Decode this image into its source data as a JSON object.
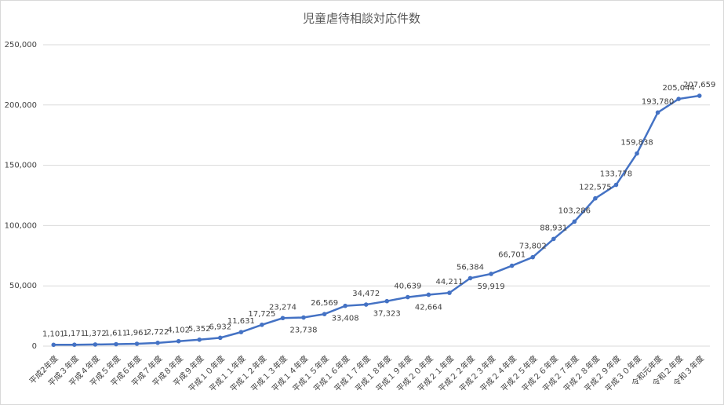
{
  "chart_data": {
    "type": "line",
    "title": "児童虐待相談対応件数",
    "categories": [
      "平成2年度",
      "平成３年度",
      "平成４年度",
      "平成５年度",
      "平成６年度",
      "平成７年度",
      "平成８年度",
      "平成９年度",
      "平成１０年度",
      "平成１１年度",
      "平成１２年度",
      "平成１３年度",
      "平成１４年度",
      "平成１５年度",
      "平成１６年度",
      "平成１７年度",
      "平成１８年度",
      "平成１９年度",
      "平成２０年度",
      "平成２１年度",
      "平成２２年度",
      "平成２３年度",
      "平成２４年度",
      "平成２５年度",
      "平成２６年度",
      "平成２７年度",
      "平成２８年度",
      "平成２９年度",
      "平成３０年度",
      "令和元年度",
      "令和２年度",
      "令和３年度"
    ],
    "series": [
      {
        "name": "児童虐待相談対応件数",
        "color": "#4472c4",
        "values": [
          1101,
          1171,
          1372,
          1611,
          1961,
          2722,
          4102,
          5352,
          6932,
          11631,
          17725,
          23274,
          23738,
          26569,
          33408,
          34472,
          37323,
          40639,
          42664,
          44211,
          56384,
          59919,
          66701,
          73802,
          88931,
          103286,
          122575,
          133778,
          159838,
          193780,
          205044,
          207659
        ],
        "value_labels": [
          "1,101",
          "1,171",
          "1,372",
          "1,611",
          "1,961",
          "2,722",
          "4,102",
          "5,352",
          "6,932",
          "11,631",
          "17,725",
          "23,274",
          "23,738",
          "26,569",
          "33,408",
          "34,472",
          "37,323",
          "40,639",
          "42,664",
          "44,211",
          "56,384",
          "59,919",
          "66,701",
          "73,802",
          "88,931",
          "103,286",
          "122,575",
          "133,778",
          "159,838",
          "193,780",
          "205,044",
          "207,659"
        ]
      }
    ],
    "ylim": [
      0,
      250000
    ],
    "yticks": [
      {
        "value": 0,
        "label": "0"
      },
      {
        "value": 50000,
        "label": "50,000"
      },
      {
        "value": 100000,
        "label": "100,000"
      },
      {
        "value": 150000,
        "label": "150,000"
      },
      {
        "value": 200000,
        "label": "200,000"
      },
      {
        "value": 250000,
        "label": "250,000"
      }
    ],
    "grid": true
  }
}
